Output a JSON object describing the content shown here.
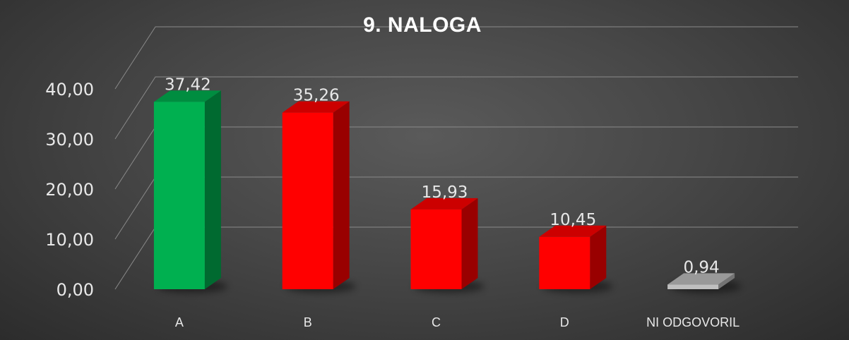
{
  "chart_data": {
    "type": "bar",
    "title": "9. NALOGA",
    "categories": [
      "A",
      "B",
      "C",
      "D",
      "NI ODGOVORIL"
    ],
    "values": [
      37.42,
      35.26,
      15.93,
      10.45,
      0.94
    ],
    "value_labels": [
      "37,42",
      "35,26",
      "15,93",
      "10,45",
      "0,94"
    ],
    "y_ticks": [
      "0,00",
      "10,00",
      "20,00",
      "30,00",
      "40,00"
    ],
    "y_tick_values": [
      0,
      10,
      20,
      30,
      40
    ],
    "ylim": [
      0,
      40
    ],
    "xlabel": "",
    "ylabel": "",
    "grid": true,
    "legend": "none",
    "style": "3d-column",
    "bar_colors": [
      "#00b050",
      "#ff0000",
      "#ff0000",
      "#ff0000",
      "#bfbfbf"
    ]
  }
}
